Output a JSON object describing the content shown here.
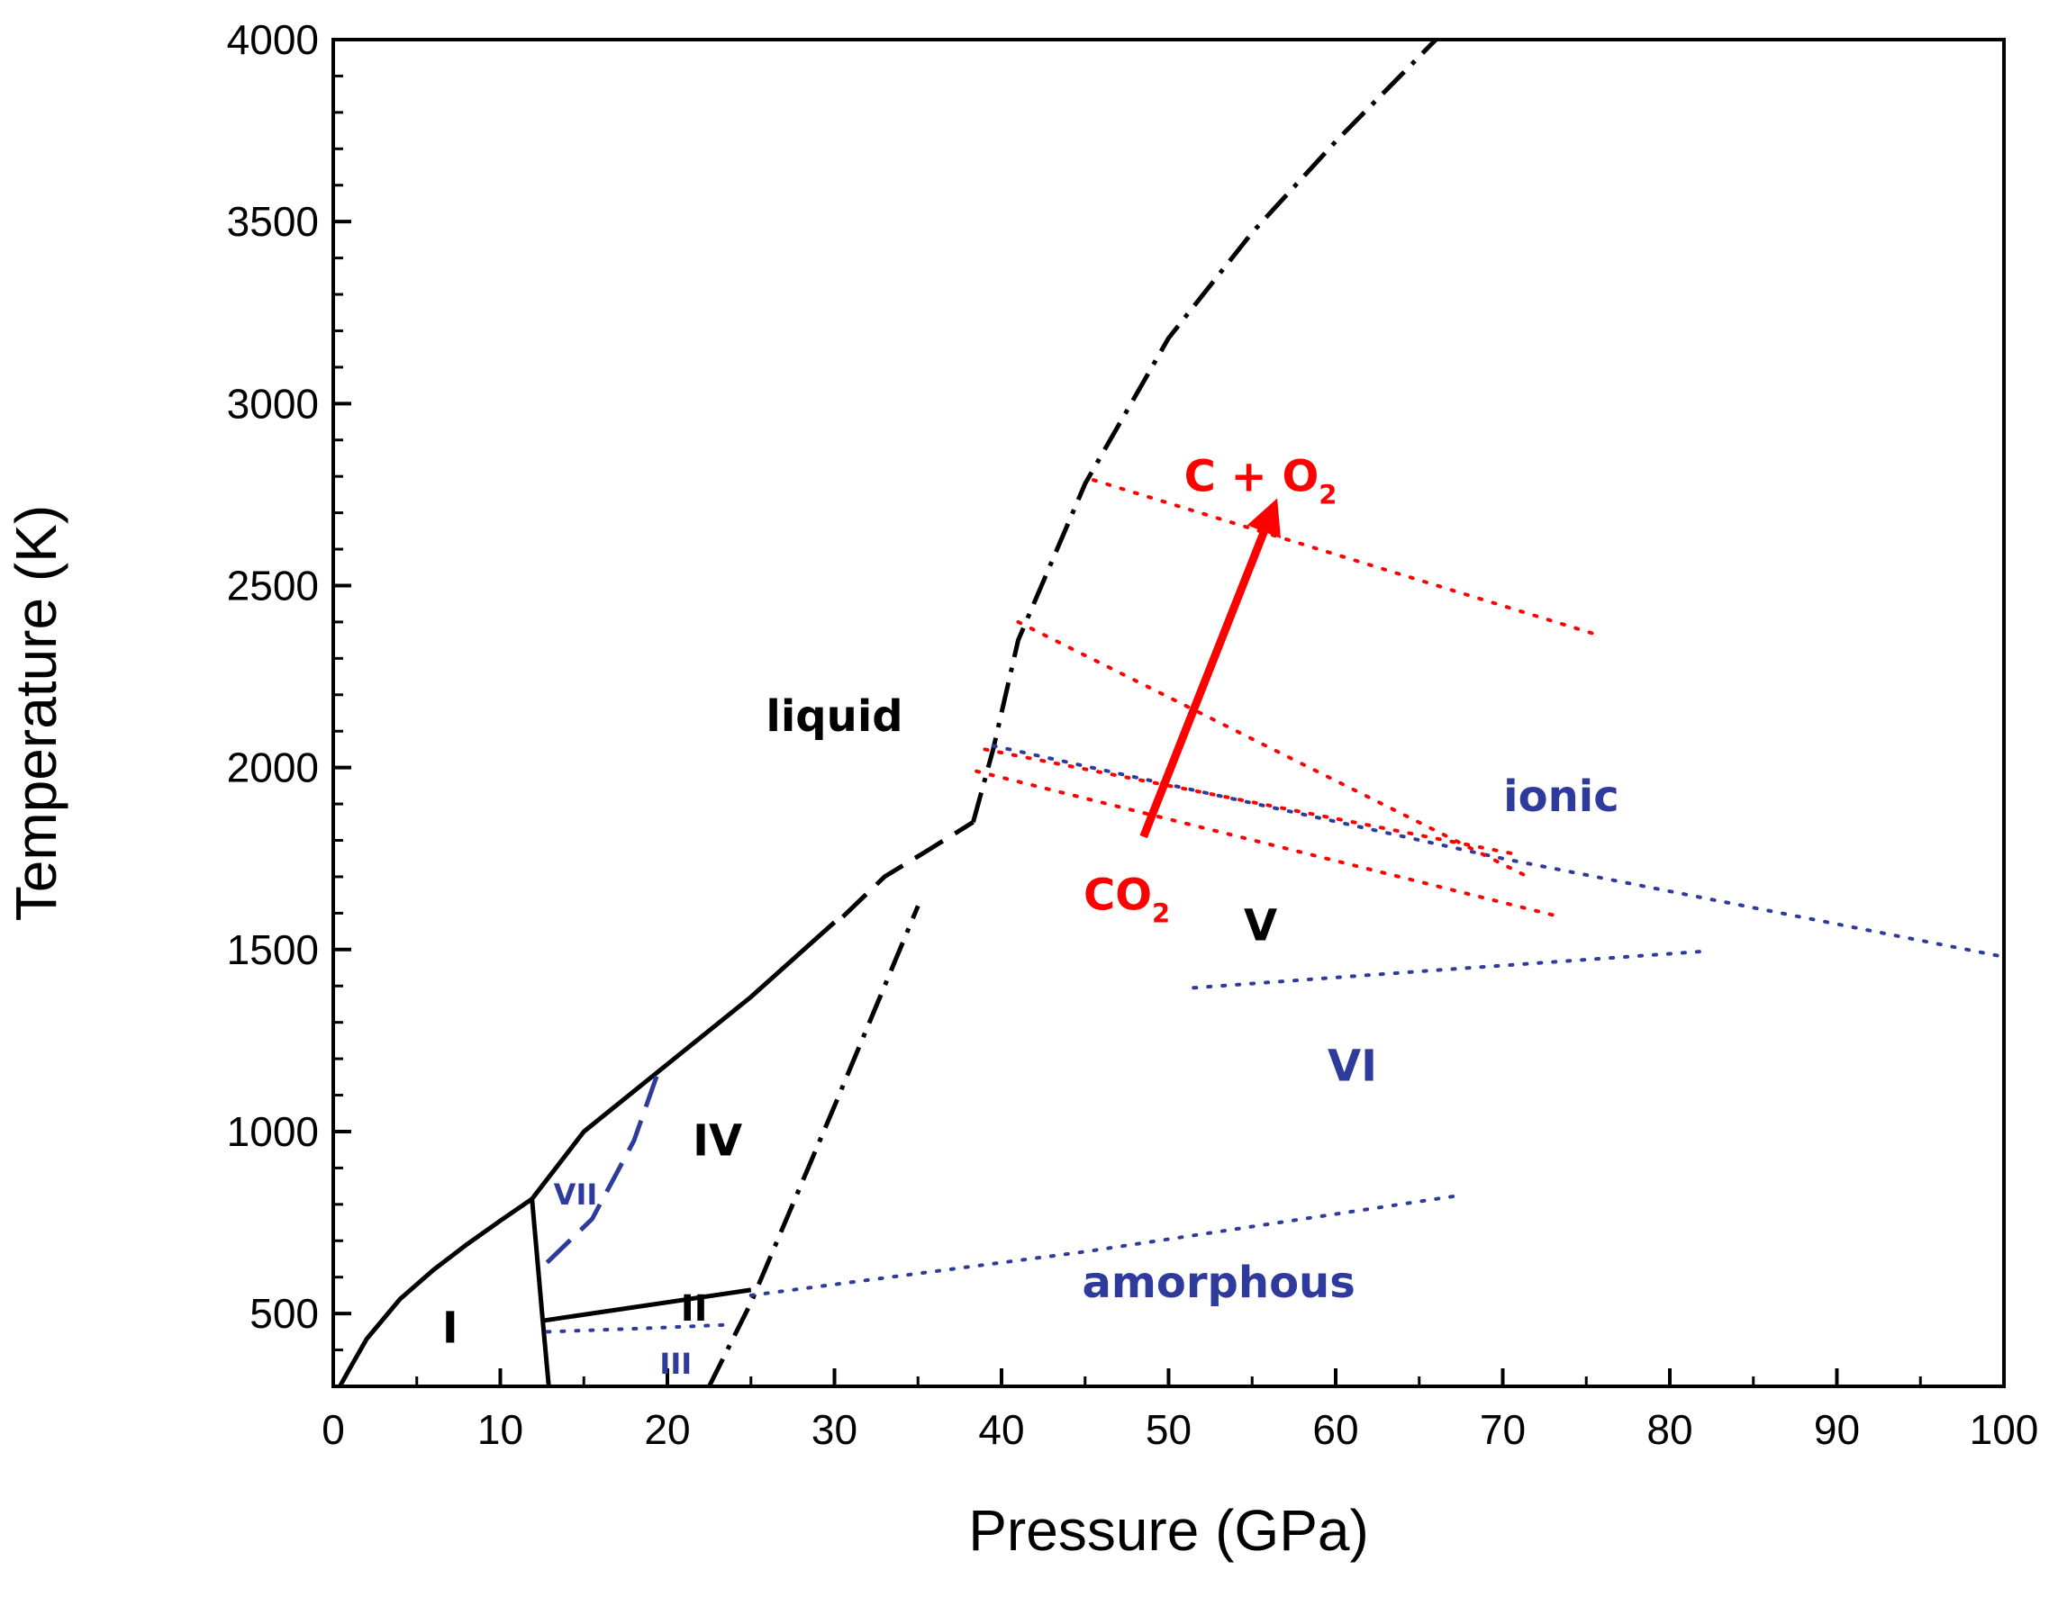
{
  "chart_data": {
    "type": "phase-diagram",
    "title": "",
    "xlabel": "Pressure (GPa)",
    "ylabel": "Temperature (K)",
    "xlim": [
      0,
      100
    ],
    "ylim": [
      300,
      4000
    ],
    "xticks": [
      0,
      10,
      20,
      30,
      40,
      50,
      60,
      70,
      80,
      90,
      100
    ],
    "yticks": [
      500,
      1000,
      1500,
      2000,
      2500,
      3000,
      3500,
      4000
    ],
    "colors": {
      "black": "#000000",
      "blue": "#2E3B9C",
      "red": "#FF0000"
    },
    "boundaries": [
      {
        "name": "I-liquid",
        "style": "solid",
        "color": "black",
        "points": [
          [
            0.4,
            300
          ],
          [
            1,
            350
          ],
          [
            2,
            430
          ],
          [
            4,
            540
          ],
          [
            6,
            620
          ],
          [
            8,
            690
          ],
          [
            10,
            755
          ],
          [
            11.9,
            815
          ]
        ]
      },
      {
        "name": "VII-IV-liquid",
        "style": "solid",
        "color": "black",
        "points": [
          [
            11.9,
            815
          ],
          [
            15,
            1000
          ],
          [
            20,
            1185
          ],
          [
            25,
            1370
          ],
          [
            30,
            1575
          ]
        ]
      },
      {
        "name": "liquid-continuation",
        "style": "dashed",
        "color": "black",
        "points": [
          [
            30.5,
            1590
          ],
          [
            33,
            1700
          ],
          [
            35.5,
            1770
          ],
          [
            38.3,
            1850
          ]
        ]
      },
      {
        "name": "I-VII-III",
        "style": "solid",
        "color": "black",
        "points": [
          [
            11.9,
            815
          ],
          [
            12.5,
            500
          ],
          [
            12.9,
            300
          ]
        ]
      },
      {
        "name": "II-IV",
        "style": "solid",
        "color": "black",
        "points": [
          [
            12.5,
            480
          ],
          [
            25,
            565
          ]
        ]
      },
      {
        "name": "IV-V",
        "style": "dashdot",
        "color": "black",
        "points": [
          [
            22.5,
            300
          ],
          [
            25,
            530
          ],
          [
            30,
            1070
          ],
          [
            35,
            1620
          ]
        ]
      },
      {
        "name": "melting-V",
        "style": "dashdot",
        "color": "black",
        "points": [
          [
            38.3,
            1850
          ],
          [
            39.5,
            2050
          ],
          [
            41,
            2350
          ],
          [
            45,
            2780
          ],
          [
            50,
            3180
          ],
          [
            55,
            3470
          ],
          [
            60,
            3720
          ],
          [
            66,
            4000
          ]
        ]
      },
      {
        "name": "VII-IV",
        "style": "dashed",
        "color": "blue",
        "points": [
          [
            12.8,
            640
          ],
          [
            15.5,
            760
          ],
          [
            18,
            975
          ],
          [
            19.5,
            1170
          ]
        ]
      },
      {
        "name": "II-III",
        "style": "dotted",
        "color": "blue",
        "points": [
          [
            12.8,
            450
          ],
          [
            19,
            460
          ],
          [
            24,
            470
          ]
        ]
      },
      {
        "name": "amorphous",
        "style": "dotted",
        "color": "blue",
        "points": [
          [
            25,
            550
          ],
          [
            45,
            670
          ],
          [
            67.5,
            825
          ]
        ]
      },
      {
        "name": "V-VI",
        "style": "dotted",
        "color": "blue",
        "points": [
          [
            51.5,
            1395
          ],
          [
            65,
            1440
          ],
          [
            82,
            1495
          ]
        ]
      },
      {
        "name": "ionic",
        "style": "dotted",
        "color": "blue",
        "points": [
          [
            39.5,
            2060
          ],
          [
            70,
            1750
          ],
          [
            100,
            1480
          ]
        ]
      },
      {
        "name": "dissociation-1",
        "style": "dotted",
        "color": "red",
        "points": [
          [
            45.5,
            2790
          ],
          [
            76,
            2360
          ]
        ]
      },
      {
        "name": "dissociation-2",
        "style": "dotted",
        "color": "red",
        "points": [
          [
            41,
            2400
          ],
          [
            71.5,
            1700
          ]
        ]
      },
      {
        "name": "dissociation-3",
        "style": "dotted",
        "color": "red",
        "points": [
          [
            39,
            2050
          ],
          [
            71,
            1760
          ]
        ]
      },
      {
        "name": "dissociation-4",
        "style": "dotted",
        "color": "red",
        "points": [
          [
            38.5,
            1990
          ],
          [
            73,
            1595
          ]
        ]
      }
    ],
    "arrow": {
      "from": [
        48.5,
        1810
      ],
      "to": [
        56.5,
        2740
      ],
      "color": "red"
    },
    "annotations": [
      {
        "id": "liquid",
        "text": "liquid",
        "x": 30,
        "y": 2100,
        "color": "black",
        "size": "large"
      },
      {
        "id": "I",
        "text": "I",
        "x": 7,
        "y": 420,
        "color": "black",
        "size": "large"
      },
      {
        "id": "IV",
        "text": "IV",
        "x": 23,
        "y": 935,
        "color": "black",
        "size": "large"
      },
      {
        "id": "V",
        "text": "V",
        "x": 55.5,
        "y": 1525,
        "color": "black",
        "size": "large"
      },
      {
        "id": "II",
        "text": "II",
        "x": 21.6,
        "y": 480,
        "color": "black",
        "size": "medium"
      },
      {
        "id": "VII",
        "text": "VII",
        "x": 14.5,
        "y": 800,
        "color": "blue",
        "size": "small"
      },
      {
        "id": "III",
        "text": "III",
        "x": 20.5,
        "y": 335,
        "color": "blue",
        "size": "small"
      },
      {
        "id": "VI",
        "text": "VI",
        "x": 61,
        "y": 1140,
        "color": "blue",
        "size": "large"
      },
      {
        "id": "ionic",
        "text": "ionic",
        "x": 73.5,
        "y": 1880,
        "color": "blue",
        "size": "large"
      },
      {
        "id": "amorphous",
        "text": "amorphous",
        "x": 53,
        "y": 545,
        "color": "blue",
        "size": "large"
      },
      {
        "id": "co2",
        "text": "CO",
        "sub": "2",
        "x": 47.5,
        "y": 1610,
        "color": "red",
        "size": "large"
      },
      {
        "id": "c_o2",
        "text": "C + O",
        "sub": "2",
        "x": 55.5,
        "y": 2760,
        "color": "red",
        "size": "large"
      }
    ]
  }
}
